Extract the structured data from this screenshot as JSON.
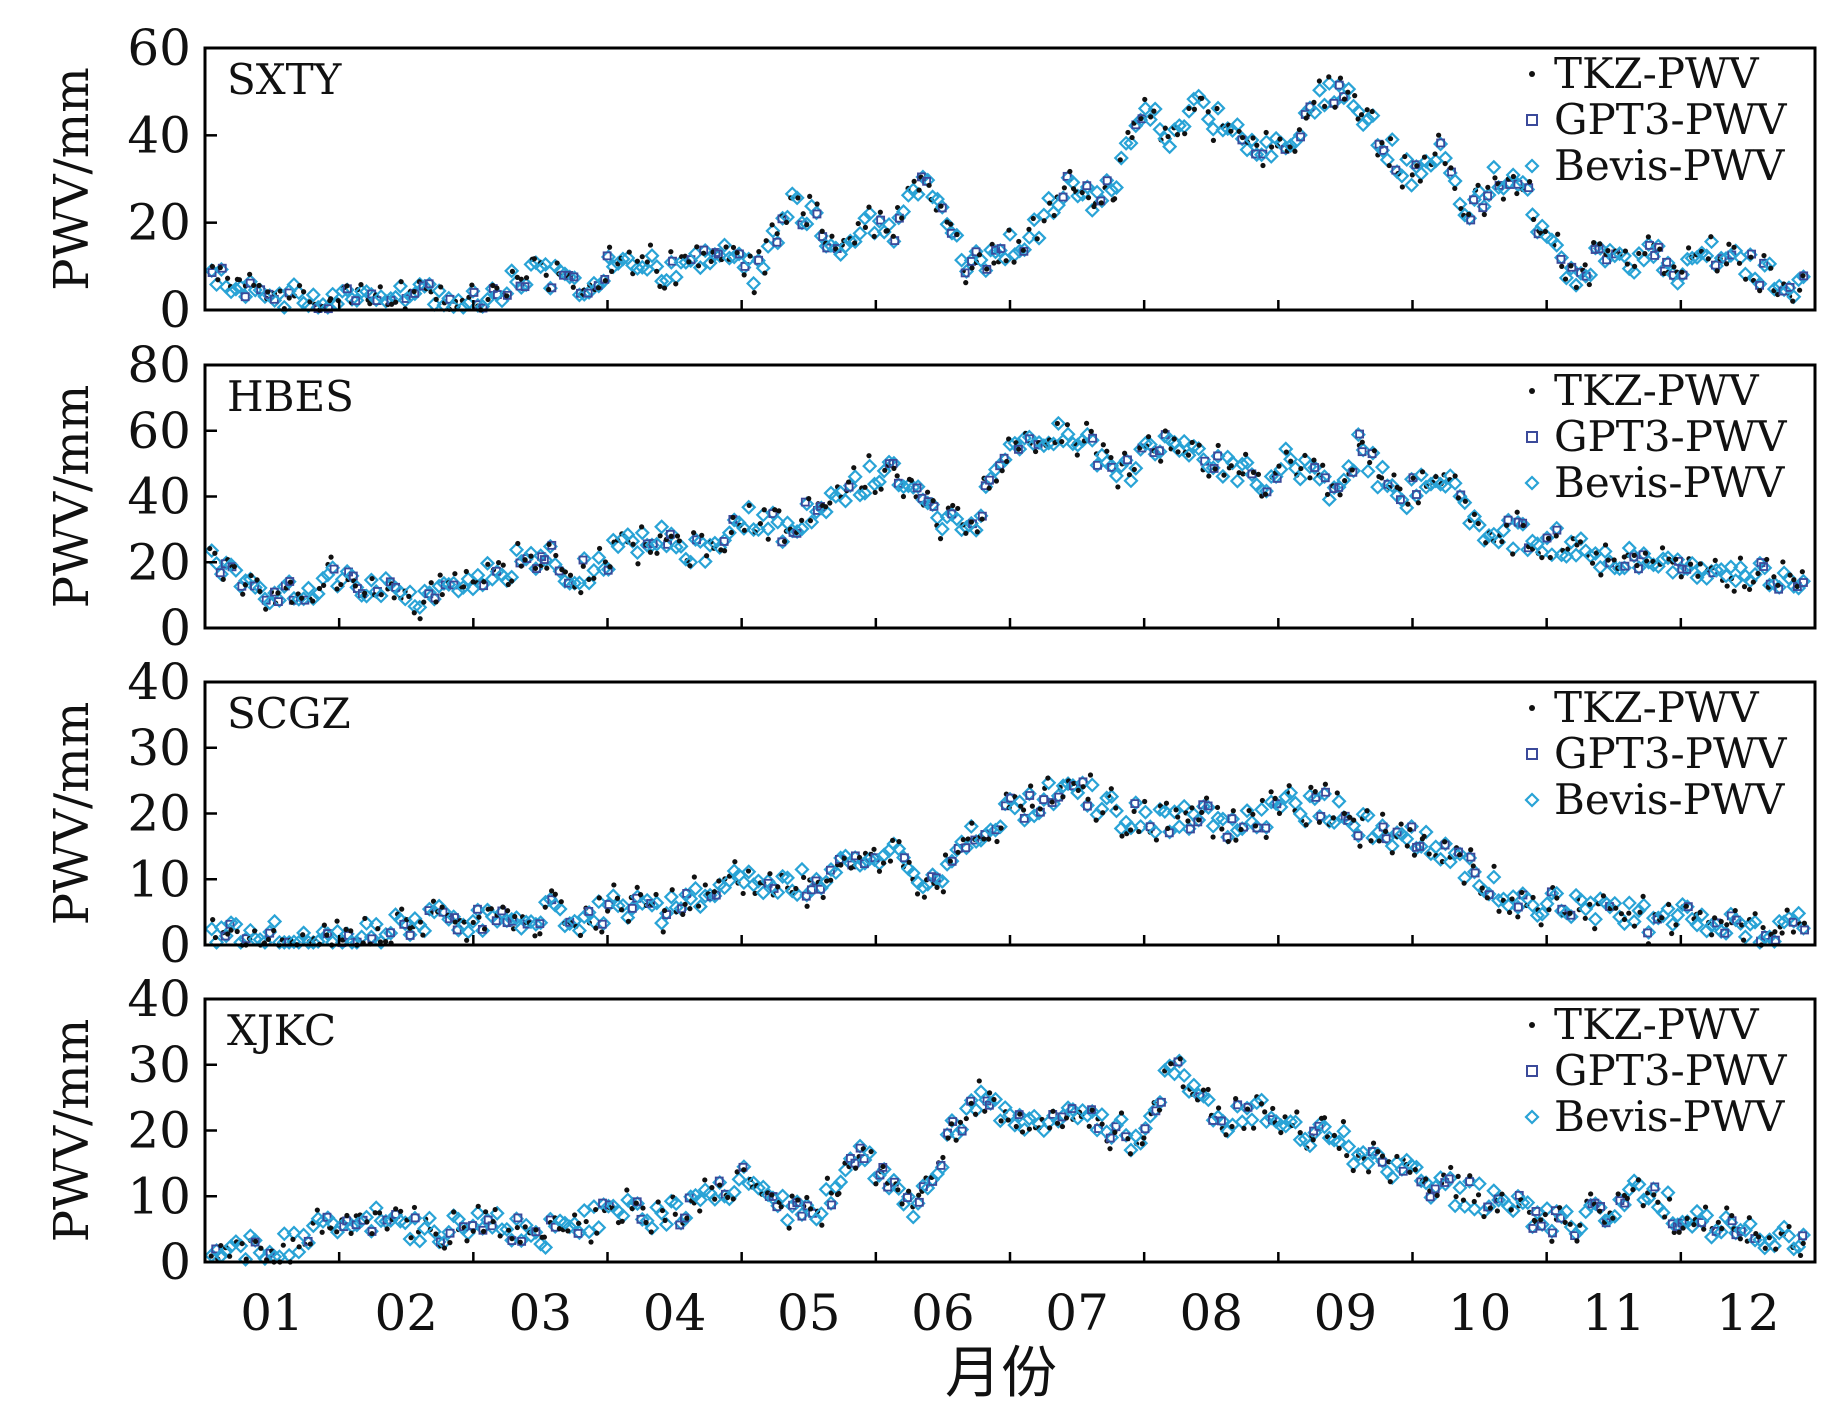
{
  "chart_data": {
    "type": "scatter",
    "xlabel": "月份",
    "x_tick_labels": [
      "01",
      "02",
      "03",
      "04",
      "05",
      "06",
      "07",
      "08",
      "09",
      "10",
      "11",
      "12"
    ],
    "xlim_months": [
      0.5,
      12.5
    ],
    "legend": [
      "TKZ-PWV",
      "GPT3-PWV",
      "Bevis-PWV"
    ],
    "series_colors": {
      "TKZ-PWV": "#111111",
      "GPT3-PWV": "#3b4a9a",
      "Bevis-PWV": "#29a3d6"
    },
    "panels": [
      {
        "station": "SXTY",
        "ylabel": "PWV/mm",
        "ylim": [
          0,
          60
        ],
        "yticks": [
          "0",
          "20",
          "40",
          "60"
        ],
        "ytick_values": [
          0,
          20,
          40,
          60
        ],
        "x_month": [
          0.6,
          0.9,
          1.2,
          1.5,
          1.8,
          2.1,
          2.4,
          2.7,
          3.0,
          3.3,
          3.6,
          3.9,
          4.2,
          4.4,
          4.6,
          4.9,
          5.2,
          5.4,
          5.6,
          5.9,
          6.2,
          6.5,
          6.7,
          6.9,
          7.1,
          7.3,
          7.5,
          7.7,
          7.9,
          8.1,
          8.3,
          8.5,
          8.7,
          8.9,
          9.1,
          9.3,
          9.5,
          9.7,
          9.9,
          10.1,
          10.3,
          10.5,
          10.7,
          10.9,
          11.1,
          11.3,
          11.5,
          11.7,
          11.9,
          12.1,
          12.3,
          12.4
        ],
        "pwv_mm": [
          8,
          4,
          3,
          3,
          5,
          3,
          2,
          5,
          8,
          6,
          12,
          9,
          10,
          15,
          8,
          25,
          14,
          20,
          17,
          30,
          10,
          15,
          18,
          28,
          25,
          30,
          45,
          40,
          48,
          42,
          37,
          38,
          44,
          50,
          46,
          38,
          30,
          38,
          20,
          30,
          32,
          14,
          8,
          12,
          10,
          14,
          8,
          14,
          12,
          8,
          6,
          5
        ]
      },
      {
        "station": "HBES",
        "ylabel": "PWV/mm",
        "ylim": [
          0,
          80
        ],
        "yticks": [
          "0",
          "20",
          "40",
          "60",
          "80"
        ],
        "ytick_values": [
          0,
          20,
          40,
          60,
          80
        ],
        "x_month": [
          0.6,
          0.9,
          1.2,
          1.5,
          1.8,
          2.1,
          2.4,
          2.7,
          3.0,
          3.3,
          3.6,
          3.9,
          4.2,
          4.5,
          4.8,
          5.1,
          5.4,
          5.6,
          5.9,
          6.2,
          6.5,
          6.8,
          7.0,
          7.3,
          7.6,
          7.9,
          8.1,
          8.4,
          8.6,
          8.9,
          9.1,
          9.4,
          9.7,
          10.0,
          10.3,
          10.6,
          10.9,
          11.2,
          11.5,
          11.8,
          12.1,
          12.3,
          12.4
        ],
        "pwv_mm": [
          20,
          10,
          12,
          15,
          12,
          10,
          14,
          18,
          22,
          16,
          25,
          28,
          22,
          35,
          30,
          38,
          45,
          48,
          35,
          30,
          52,
          60,
          58,
          45,
          55,
          52,
          48,
          45,
          52,
          40,
          55,
          38,
          48,
          30,
          28,
          26,
          22,
          20,
          18,
          20,
          16,
          15,
          16
        ]
      },
      {
        "station": "SCGZ",
        "ylabel": "PWV/mm",
        "ylim": [
          0,
          40
        ],
        "yticks": [
          "0",
          "10",
          "20",
          "30",
          "40"
        ],
        "ytick_values": [
          0,
          10,
          20,
          30,
          40
        ],
        "x_month": [
          0.6,
          0.9,
          1.2,
          1.5,
          1.8,
          2.1,
          2.4,
          2.7,
          3.0,
          3.3,
          3.6,
          3.9,
          4.2,
          4.5,
          4.8,
          5.1,
          5.4,
          5.6,
          5.9,
          6.2,
          6.5,
          6.8,
          7.0,
          7.3,
          7.6,
          7.9,
          8.1,
          8.4,
          8.6,
          8.9,
          9.1,
          9.4,
          9.7,
          10.0,
          10.3,
          10.6,
          10.9,
          11.2,
          11.5,
          11.8,
          12.1,
          12.3,
          12.4
        ],
        "pwv_mm": [
          1,
          2,
          1,
          1,
          2,
          4,
          4,
          3,
          5,
          4,
          6,
          5,
          7,
          11,
          9,
          10,
          13,
          15,
          9,
          17,
          20,
          23,
          24,
          20,
          19,
          20,
          18,
          20,
          21,
          21,
          18,
          17,
          15,
          10,
          7,
          6,
          5,
          4,
          4,
          3,
          2,
          2,
          3
        ]
      },
      {
        "station": "XJKC",
        "ylabel": "PWV/mm",
        "ylim": [
          0,
          40
        ],
        "yticks": [
          "0",
          "10",
          "20",
          "30",
          "40"
        ],
        "ytick_values": [
          0,
          10,
          20,
          30,
          40
        ],
        "x_month": [
          0.6,
          0.9,
          1.2,
          1.5,
          1.8,
          2.1,
          2.4,
          2.7,
          3.0,
          3.3,
          3.6,
          3.9,
          4.2,
          4.5,
          4.8,
          5.1,
          5.3,
          5.5,
          5.8,
          6.1,
          6.3,
          6.6,
          6.9,
          7.1,
          7.3,
          7.5,
          7.7,
          7.9,
          8.1,
          8.4,
          8.7,
          8.9,
          9.1,
          9.4,
          9.7,
          10.0,
          10.3,
          10.6,
          10.9,
          11.2,
          11.5,
          11.8,
          12.1,
          12.3,
          12.4
        ],
        "pwv_mm": [
          3,
          2,
          3,
          6,
          7,
          5,
          5,
          6,
          4,
          6,
          8,
          7,
          9,
          13,
          8,
          8,
          17,
          14,
          7,
          21,
          24,
          22,
          22,
          23,
          20,
          18,
          30,
          26,
          22,
          23,
          19,
          20,
          15,
          14,
          11,
          10,
          8,
          6,
          7,
          12,
          7,
          5,
          4,
          4,
          4
        ]
      }
    ]
  }
}
